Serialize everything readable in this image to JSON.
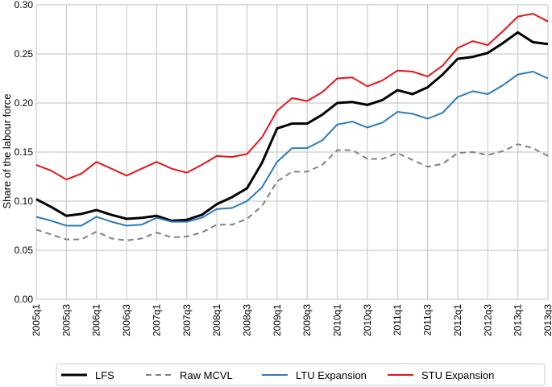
{
  "chart_data": {
    "type": "line",
    "title": "",
    "xlabel": "",
    "ylabel": "Share of the labour force",
    "ylim": [
      0,
      0.3
    ],
    "yticks": [
      "0.00",
      "0.05",
      "0.10",
      "0.15",
      "0.20",
      "0.25",
      "0.30"
    ],
    "grid": true,
    "legend_position": "bottom",
    "x": [
      "2005q1",
      "2005q2",
      "2005q3",
      "2005q4",
      "2006q1",
      "2006q2",
      "2006q3",
      "2006q4",
      "2007q1",
      "2007q2",
      "2007q3",
      "2007q4",
      "2008q1",
      "2008q2",
      "2008q3",
      "2008q4",
      "2009q1",
      "2009q2",
      "2009q3",
      "2009q4",
      "2010q1",
      "2010q2",
      "2010q3",
      "2010q4",
      "2011q1",
      "2011q2",
      "2011q3",
      "2011q4",
      "2012q1",
      "2012q2",
      "2012q3",
      "2012q4",
      "2013q1",
      "2013q2",
      "2013q3"
    ],
    "xtick_labels": [
      "2005q1",
      "2005q3",
      "2006q1",
      "2006q3",
      "2007q1",
      "2007q3",
      "2008q1",
      "2008q3",
      "2009q1",
      "2009q3",
      "2010q1",
      "2010q3",
      "2011q1",
      "2011q3",
      "2012q1",
      "2012q3",
      "2013q1",
      "2013q3"
    ],
    "series": [
      {
        "name": "LFS",
        "color": "#000000",
        "dash": "solid",
        "width": 3,
        "values": [
          0.102,
          0.094,
          0.085,
          0.087,
          0.091,
          0.086,
          0.082,
          0.083,
          0.085,
          0.08,
          0.081,
          0.086,
          0.097,
          0.104,
          0.113,
          0.139,
          0.174,
          0.179,
          0.179,
          0.188,
          0.2,
          0.201,
          0.198,
          0.203,
          0.213,
          0.209,
          0.216,
          0.229,
          0.245,
          0.247,
          0.251,
          0.261,
          0.272,
          0.262,
          0.26
        ]
      },
      {
        "name": "Raw MCVL",
        "color": "#808080",
        "dash": "dashed",
        "width": 2,
        "values": [
          0.071,
          0.066,
          0.061,
          0.061,
          0.069,
          0.062,
          0.06,
          0.062,
          0.068,
          0.063,
          0.064,
          0.068,
          0.076,
          0.076,
          0.082,
          0.095,
          0.12,
          0.13,
          0.13,
          0.137,
          0.152,
          0.152,
          0.143,
          0.143,
          0.149,
          0.142,
          0.135,
          0.138,
          0.149,
          0.15,
          0.147,
          0.151,
          0.158,
          0.154,
          0.146
        ]
      },
      {
        "name": "LTU Expansion",
        "color": "#2b7bba",
        "dash": "solid",
        "width": 2,
        "values": [
          0.084,
          0.08,
          0.075,
          0.075,
          0.084,
          0.079,
          0.075,
          0.076,
          0.083,
          0.079,
          0.079,
          0.083,
          0.092,
          0.093,
          0.1,
          0.114,
          0.14,
          0.154,
          0.154,
          0.162,
          0.178,
          0.181,
          0.175,
          0.18,
          0.191,
          0.189,
          0.184,
          0.19,
          0.206,
          0.212,
          0.209,
          0.218,
          0.229,
          0.232,
          0.225
        ]
      },
      {
        "name": "STU Expansion",
        "color": "#e4151b",
        "dash": "solid",
        "width": 2,
        "values": [
          0.137,
          0.131,
          0.122,
          0.128,
          0.14,
          0.133,
          0.126,
          0.133,
          0.14,
          0.133,
          0.129,
          0.137,
          0.146,
          0.145,
          0.148,
          0.165,
          0.192,
          0.205,
          0.202,
          0.211,
          0.225,
          0.226,
          0.217,
          0.223,
          0.233,
          0.232,
          0.227,
          0.238,
          0.256,
          0.263,
          0.259,
          0.273,
          0.288,
          0.291,
          0.283
        ]
      }
    ]
  }
}
